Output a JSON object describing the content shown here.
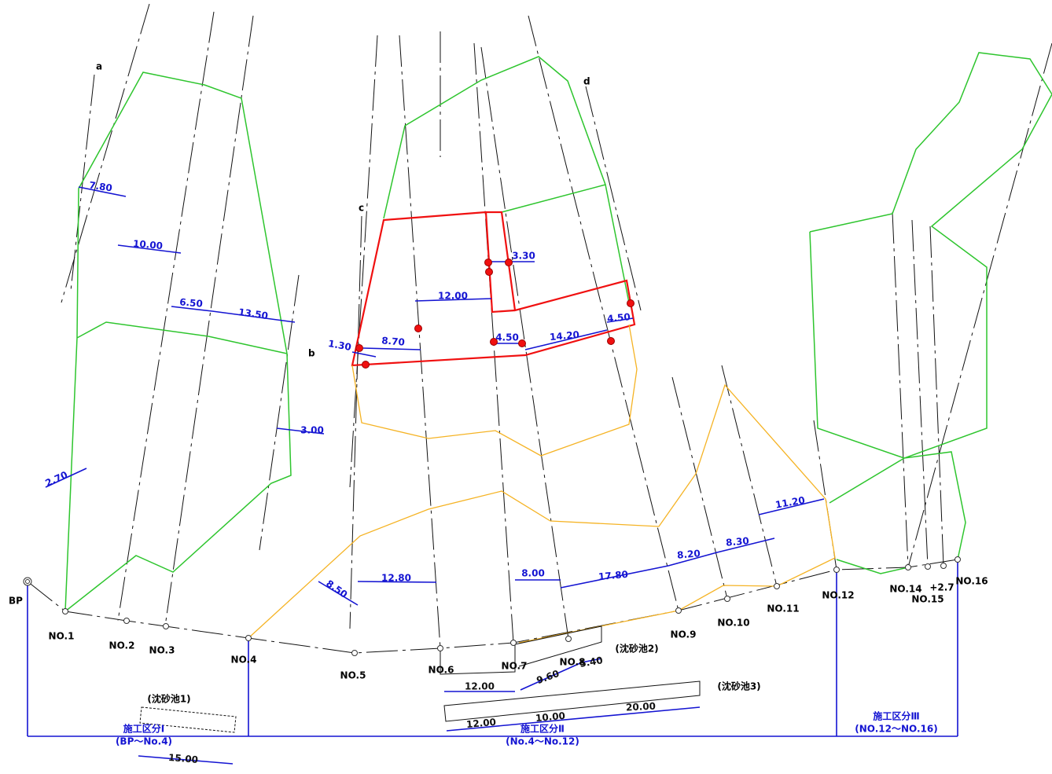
{
  "stations": [
    "BP",
    "NO.1",
    "NO.2",
    "NO.3",
    "NO.4",
    "NO.5",
    "NO.6",
    "NO.7",
    "NO.8",
    "NO.9",
    "NO.10",
    "NO.11",
    "NO.12",
    "NO.14",
    "+2.7",
    "NO.15",
    "NO.16"
  ],
  "section_letters": [
    "a",
    "b",
    "c",
    "d"
  ],
  "dimensions": [
    "7.80",
    "10.00",
    "6.50",
    "13.50",
    "2.70",
    "3.00",
    "1.30",
    "8.70",
    "12.00",
    "3.30",
    "4.50",
    "14.20",
    "4.50",
    "12.80",
    "8.50",
    "8.00",
    "17.80",
    "8.20",
    "8.30",
    "11.20",
    "12.00",
    "9.60",
    "5.40",
    "12.00",
    "10.00",
    "20.00",
    "15.00"
  ],
  "ponds": [
    "(沈砂池1)",
    "(沈砂池2)",
    "(沈砂池3)"
  ],
  "sections": [
    {
      "title": "施工区分Ⅰ",
      "range": "(BP～No.4)"
    },
    {
      "title": "施工区分Ⅱ",
      "range": "(No.4～No.12)"
    },
    {
      "title": "施工区分Ⅲ",
      "range": "(NO.12～NO.16)"
    }
  ]
}
